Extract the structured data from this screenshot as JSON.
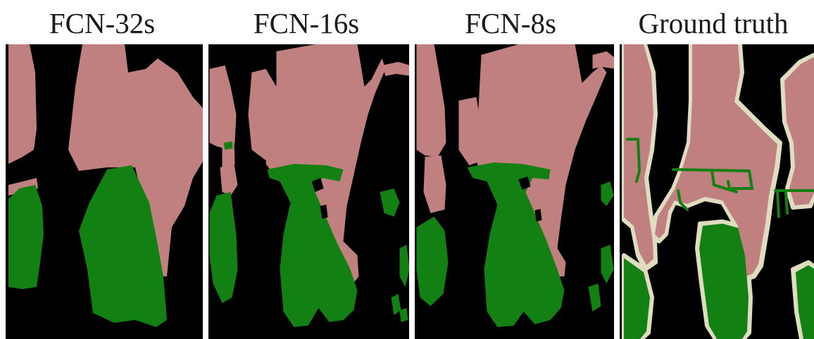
{
  "figure": {
    "titles": [
      "FCN-32s",
      "FCN-16s",
      "FCN-8s",
      "Ground truth"
    ],
    "colors": {
      "background": "#000000",
      "person": "#c08080",
      "bicycle": "#138013",
      "boundary": "#e0dcc0"
    }
  }
}
